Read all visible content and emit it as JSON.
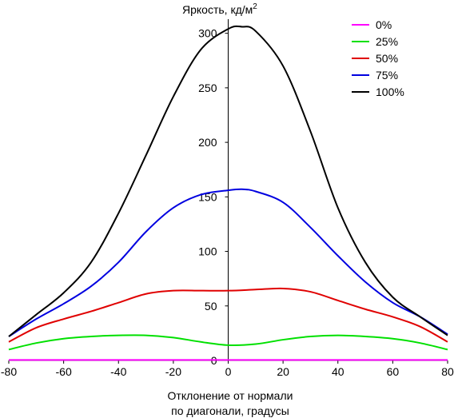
{
  "chart_data": {
    "type": "line",
    "y_title_main": "Яркость, кд/м",
    "y_title_sup": "2",
    "xlabel_line1": "Отклонение от нормали",
    "xlabel_line2": "по диагонали, градусы",
    "xlim": [
      -80,
      80
    ],
    "ylim": [
      0,
      310
    ],
    "xticks": [
      -80,
      -60,
      -40,
      -20,
      0,
      20,
      40,
      60,
      80
    ],
    "yticks": [
      0,
      50,
      100,
      150,
      200,
      250,
      300
    ],
    "grid": false,
    "legend_position": "top-right",
    "series": [
      {
        "name": "0%",
        "color": "#ff00ff",
        "x": [
          -80,
          -60,
          -40,
          -20,
          0,
          20,
          40,
          60,
          80
        ],
        "y": [
          0.5,
          0.5,
          0.5,
          0.5,
          0.5,
          0.5,
          0.5,
          0.5,
          0.5
        ]
      },
      {
        "name": "25%",
        "color": "#00e000",
        "x": [
          -80,
          -70,
          -60,
          -50,
          -40,
          -30,
          -20,
          -10,
          0,
          10,
          20,
          30,
          40,
          50,
          60,
          70,
          80
        ],
        "y": [
          10,
          16,
          20,
          22,
          23,
          23,
          21,
          17,
          14,
          15,
          19,
          22,
          23,
          22,
          20,
          16,
          10
        ]
      },
      {
        "name": "50%",
        "color": "#e00000",
        "x": [
          -80,
          -70,
          -60,
          -50,
          -40,
          -30,
          -20,
          -10,
          0,
          10,
          20,
          30,
          40,
          50,
          60,
          70,
          80
        ],
        "y": [
          17,
          30,
          38,
          45,
          53,
          61,
          64,
          64,
          64,
          65,
          66,
          63,
          55,
          47,
          40,
          31,
          17
        ]
      },
      {
        "name": "75%",
        "color": "#0000e0",
        "x": [
          -80,
          -70,
          -60,
          -50,
          -40,
          -30,
          -20,
          -10,
          0,
          5,
          10,
          20,
          30,
          40,
          50,
          60,
          70,
          80
        ],
        "y": [
          22,
          38,
          52,
          68,
          90,
          118,
          140,
          152,
          156,
          157,
          155,
          145,
          122,
          96,
          72,
          53,
          40,
          24
        ]
      },
      {
        "name": "100%",
        "color": "#000000",
        "x": [
          -80,
          -70,
          -60,
          -50,
          -40,
          -30,
          -20,
          -10,
          0,
          5,
          10,
          20,
          30,
          40,
          50,
          60,
          70,
          80
        ],
        "y": [
          22,
          42,
          62,
          90,
          135,
          188,
          242,
          285,
          304,
          306,
          302,
          270,
          210,
          140,
          90,
          58,
          40,
          23
        ]
      }
    ]
  }
}
